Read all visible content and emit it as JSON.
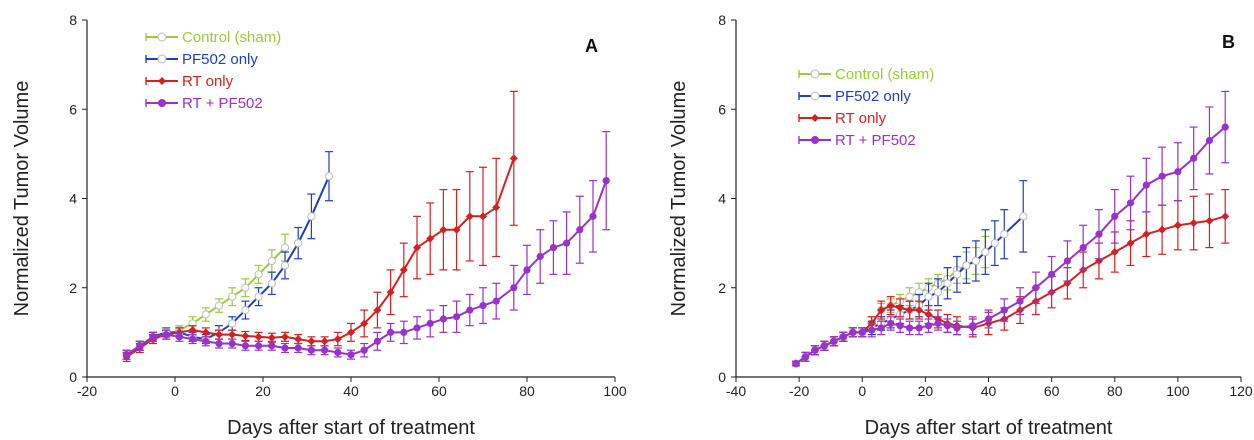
{
  "chart_data": [
    {
      "type": "line",
      "panel_label": "A",
      "xlabel": "Days after start of treatment",
      "ylabel": "Normalized Tumor Volume",
      "xlim": [
        -20,
        100
      ],
      "ylim": [
        0,
        8
      ],
      "xticks": [
        -20,
        0,
        20,
        40,
        60,
        80,
        100
      ],
      "yticks": [
        0,
        2,
        4,
        6,
        8
      ],
      "legend_position": "top-left",
      "series": [
        {
          "name": "Control (sham)",
          "color": "#9acd32",
          "marker": "open-circle",
          "x": [
            -11,
            -8,
            -5,
            -2,
            1,
            4,
            7,
            10,
            13,
            16,
            19,
            22,
            25
          ],
          "y": [
            0.5,
            0.7,
            0.85,
            0.95,
            1.05,
            1.2,
            1.4,
            1.6,
            1.8,
            2.0,
            2.3,
            2.6,
            2.9
          ],
          "err": [
            0.1,
            0.1,
            0.1,
            0.1,
            0.1,
            0.15,
            0.15,
            0.15,
            0.2,
            0.2,
            0.2,
            0.25,
            0.3
          ]
        },
        {
          "name": "PF502 only",
          "color": "#1f3fbf",
          "marker": "open-circle",
          "x": [
            -11,
            -8,
            -5,
            -2,
            1,
            4,
            7,
            10,
            13,
            16,
            19,
            22,
            25,
            28,
            31,
            35
          ],
          "y": [
            0.5,
            0.7,
            0.9,
            1.0,
            1.0,
            0.9,
            0.85,
            1.0,
            1.2,
            1.5,
            1.8,
            2.1,
            2.5,
            3.0,
            3.6,
            4.5
          ],
          "err": [
            0.1,
            0.1,
            0.1,
            0.1,
            0.1,
            0.1,
            0.1,
            0.15,
            0.15,
            0.2,
            0.2,
            0.25,
            0.3,
            0.35,
            0.5,
            0.55
          ]
        },
        {
          "name": "RT only",
          "color": "#d42020",
          "marker": "filled-diamond",
          "x": [
            -11,
            -8,
            -5,
            -2,
            1,
            4,
            7,
            10,
            13,
            16,
            19,
            22,
            25,
            28,
            31,
            34,
            37,
            40,
            43,
            46,
            49,
            52,
            55,
            58,
            61,
            64,
            67,
            70,
            73,
            77
          ],
          "y": [
            0.45,
            0.65,
            0.85,
            0.95,
            1.0,
            1.05,
            1.0,
            0.95,
            0.95,
            0.92,
            0.9,
            0.88,
            0.9,
            0.85,
            0.8,
            0.8,
            0.85,
            1.0,
            1.2,
            1.5,
            1.9,
            2.4,
            2.9,
            3.1,
            3.3,
            3.3,
            3.6,
            3.6,
            3.8,
            4.9
          ],
          "err": [
            0.1,
            0.1,
            0.1,
            0.1,
            0.1,
            0.1,
            0.1,
            0.1,
            0.1,
            0.1,
            0.1,
            0.1,
            0.1,
            0.1,
            0.1,
            0.1,
            0.15,
            0.2,
            0.3,
            0.4,
            0.5,
            0.6,
            0.7,
            0.8,
            0.9,
            0.9,
            1.0,
            1.1,
            1.1,
            1.5
          ]
        },
        {
          "name": "RT + PF502",
          "color": "#9932cc",
          "marker": "filled-circle",
          "x": [
            -11,
            -8,
            -5,
            -2,
            1,
            4,
            7,
            10,
            13,
            16,
            19,
            22,
            25,
            28,
            31,
            34,
            37,
            40,
            43,
            46,
            49,
            52,
            55,
            58,
            61,
            64,
            67,
            70,
            73,
            77,
            80,
            83,
            86,
            89,
            92,
            95,
            98
          ],
          "y": [
            0.5,
            0.7,
            0.9,
            0.95,
            0.9,
            0.85,
            0.8,
            0.75,
            0.75,
            0.7,
            0.7,
            0.7,
            0.65,
            0.65,
            0.6,
            0.6,
            0.55,
            0.5,
            0.6,
            0.8,
            1.0,
            1.0,
            1.1,
            1.2,
            1.3,
            1.35,
            1.5,
            1.6,
            1.7,
            2.0,
            2.4,
            2.7,
            2.9,
            3.0,
            3.3,
            3.6,
            4.4
          ],
          "err": [
            0.1,
            0.1,
            0.1,
            0.1,
            0.1,
            0.1,
            0.1,
            0.1,
            0.1,
            0.1,
            0.1,
            0.1,
            0.1,
            0.1,
            0.1,
            0.1,
            0.1,
            0.1,
            0.15,
            0.2,
            0.2,
            0.25,
            0.25,
            0.3,
            0.3,
            0.35,
            0.35,
            0.4,
            0.4,
            0.5,
            0.55,
            0.6,
            0.6,
            0.7,
            0.75,
            0.8,
            1.1
          ]
        }
      ]
    },
    {
      "type": "line",
      "panel_label": "B",
      "xlabel": "Days after start of treatment",
      "ylabel": "Normalized Tumor Volume",
      "xlim": [
        -40,
        120
      ],
      "ylim": [
        0,
        8
      ],
      "xticks": [
        -40,
        -20,
        0,
        20,
        40,
        60,
        80,
        100,
        120
      ],
      "yticks": [
        0,
        2,
        4,
        6,
        8
      ],
      "legend_position": "top-left",
      "series": [
        {
          "name": "Control (sham)",
          "color": "#9acd32",
          "marker": "open-circle",
          "x": [
            -21,
            -18,
            -15,
            -12,
            -9,
            -6,
            -3,
            0,
            3,
            6,
            9,
            12,
            15,
            18,
            21,
            24,
            27,
            30,
            33,
            36,
            39
          ],
          "y": [
            0.3,
            0.45,
            0.6,
            0.7,
            0.8,
            0.9,
            1.0,
            1.0,
            1.2,
            1.5,
            1.6,
            1.7,
            1.8,
            1.9,
            2.0,
            2.1,
            2.2,
            2.4,
            2.5,
            2.6,
            2.8
          ],
          "err": [
            0.05,
            0.1,
            0.1,
            0.1,
            0.1,
            0.1,
            0.1,
            0.1,
            0.15,
            0.15,
            0.15,
            0.15,
            0.2,
            0.2,
            0.2,
            0.2,
            0.25,
            0.3,
            0.3,
            0.3,
            0.35
          ]
        },
        {
          "name": "PF502 only",
          "color": "#1f3fbf",
          "marker": "open-circle",
          "x": [
            -21,
            -18,
            -15,
            -12,
            -9,
            -6,
            -3,
            0,
            3,
            6,
            9,
            12,
            15,
            18,
            21,
            24,
            27,
            30,
            33,
            36,
            39,
            42,
            45,
            51
          ],
          "y": [
            0.3,
            0.45,
            0.6,
            0.7,
            0.8,
            0.9,
            1.0,
            1.0,
            1.1,
            1.2,
            1.3,
            1.4,
            1.5,
            1.6,
            1.8,
            1.9,
            2.1,
            2.3,
            2.5,
            2.6,
            2.8,
            3.0,
            3.2,
            3.6
          ],
          "err": [
            0.05,
            0.1,
            0.1,
            0.1,
            0.1,
            0.1,
            0.1,
            0.1,
            0.15,
            0.15,
            0.2,
            0.2,
            0.2,
            0.25,
            0.3,
            0.3,
            0.35,
            0.4,
            0.4,
            0.45,
            0.5,
            0.5,
            0.55,
            0.8
          ]
        },
        {
          "name": "RT only",
          "color": "#d42020",
          "marker": "filled-diamond",
          "x": [
            -21,
            -18,
            -15,
            -12,
            -9,
            -6,
            -3,
            0,
            3,
            6,
            9,
            12,
            15,
            18,
            21,
            24,
            27,
            30,
            35,
            40,
            45,
            50,
            55,
            60,
            65,
            70,
            75,
            80,
            85,
            90,
            95,
            100,
            105,
            110,
            115
          ],
          "y": [
            0.3,
            0.45,
            0.6,
            0.7,
            0.8,
            0.9,
            1.0,
            1.0,
            1.2,
            1.5,
            1.6,
            1.55,
            1.5,
            1.5,
            1.4,
            1.3,
            1.2,
            1.15,
            1.1,
            1.2,
            1.3,
            1.5,
            1.7,
            1.9,
            2.1,
            2.4,
            2.6,
            2.8,
            3.0,
            3.2,
            3.3,
            3.4,
            3.45,
            3.5,
            3.6
          ],
          "err": [
            0.05,
            0.1,
            0.1,
            0.1,
            0.1,
            0.1,
            0.1,
            0.1,
            0.15,
            0.2,
            0.2,
            0.2,
            0.2,
            0.2,
            0.2,
            0.2,
            0.2,
            0.2,
            0.2,
            0.25,
            0.25,
            0.3,
            0.3,
            0.35,
            0.35,
            0.4,
            0.4,
            0.45,
            0.5,
            0.5,
            0.55,
            0.55,
            0.6,
            0.6,
            0.6
          ]
        },
        {
          "name": "RT + PF502",
          "color": "#9932cc",
          "marker": "filled-circle",
          "x": [
            -21,
            -18,
            -15,
            -12,
            -9,
            -6,
            -3,
            0,
            3,
            6,
            9,
            12,
            15,
            18,
            21,
            24,
            27,
            30,
            35,
            40,
            45,
            50,
            55,
            60,
            65,
            70,
            75,
            80,
            85,
            90,
            95,
            100,
            105,
            110,
            115
          ],
          "y": [
            0.3,
            0.45,
            0.6,
            0.7,
            0.8,
            0.9,
            1.0,
            1.0,
            1.05,
            1.1,
            1.2,
            1.15,
            1.1,
            1.1,
            1.15,
            1.2,
            1.15,
            1.1,
            1.15,
            1.3,
            1.5,
            1.7,
            2.0,
            2.3,
            2.6,
            2.9,
            3.2,
            3.6,
            3.9,
            4.3,
            4.5,
            4.6,
            4.9,
            5.3,
            5.6
          ],
          "err": [
            0.05,
            0.1,
            0.1,
            0.1,
            0.1,
            0.1,
            0.1,
            0.1,
            0.15,
            0.15,
            0.15,
            0.15,
            0.15,
            0.15,
            0.15,
            0.15,
            0.15,
            0.15,
            0.2,
            0.2,
            0.25,
            0.3,
            0.35,
            0.4,
            0.45,
            0.5,
            0.55,
            0.6,
            0.6,
            0.6,
            0.65,
            0.65,
            0.7,
            0.75,
            0.8
          ]
        }
      ]
    }
  ]
}
